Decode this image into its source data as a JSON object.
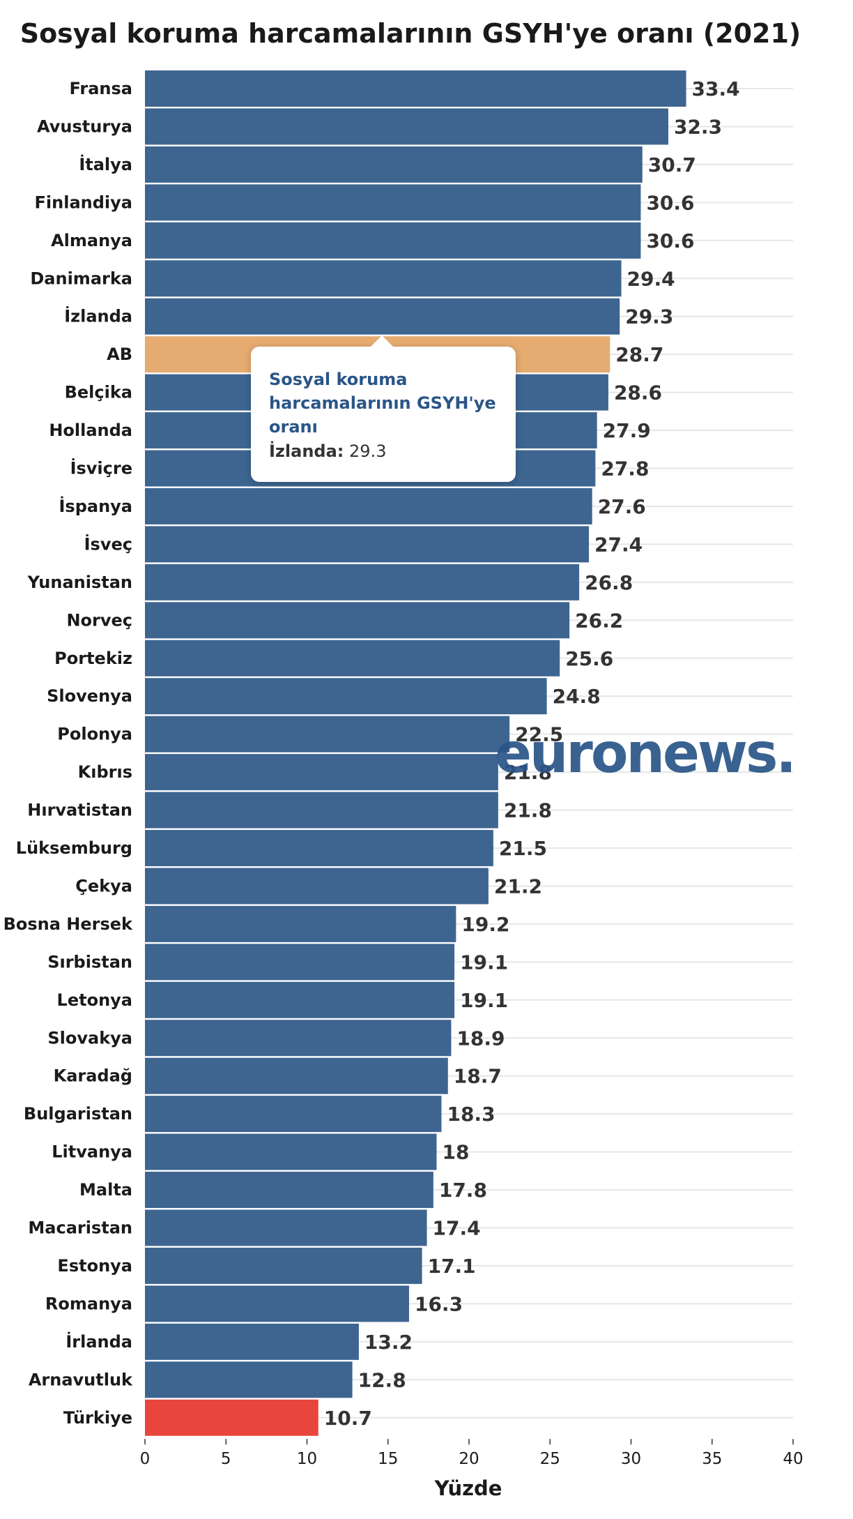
{
  "colors": {
    "bar": "#3d6590",
    "highlight_eu": "#e5ab70",
    "highlight_tr": "#e8453c",
    "grid": "#e6e6e6",
    "watermark": "#2a5587"
  },
  "watermark": "euronews.",
  "tooltip": {
    "title": "Sosyal koruma harcamalarının GSYH'ye oranı",
    "key": "İzlanda:",
    "value": "29.3"
  },
  "chart_data": {
    "type": "bar",
    "orientation": "horizontal",
    "title": "Sosyal koruma harcamalarının GSYH'ye oranı (2021)",
    "xlabel": "Yüzde",
    "ylabel": "",
    "xlim": [
      0,
      40
    ],
    "xticks": [
      0,
      5,
      10,
      15,
      20,
      25,
      30,
      35,
      40
    ],
    "grid": true,
    "categories": [
      "Fransa",
      "Avusturya",
      "İtalya",
      "Finlandiya",
      "Almanya",
      "Danimarka",
      "İzlanda",
      "AB",
      "Belçika",
      "Hollanda",
      "İsviçre",
      "İspanya",
      "İsveç",
      "Yunanistan",
      "Norveç",
      "Portekiz",
      "Slovenya",
      "Polonya",
      "Kıbrıs",
      "Hırvatistan",
      "Lüksemburg",
      "Çekya",
      "Bosna Hersek",
      "Sırbistan",
      "Letonya",
      "Slovakya",
      "Karadağ",
      "Bulgaristan",
      "Litvanya",
      "Malta",
      "Macaristan",
      "Estonya",
      "Romanya",
      "İrlanda",
      "Arnavutluk",
      "Türkiye"
    ],
    "values": [
      33.4,
      32.3,
      30.7,
      30.6,
      30.6,
      29.4,
      29.3,
      28.7,
      28.6,
      27.9,
      27.8,
      27.6,
      27.4,
      26.8,
      26.2,
      25.6,
      24.8,
      22.5,
      21.8,
      21.8,
      21.5,
      21.2,
      19.2,
      19.1,
      19.1,
      18.9,
      18.7,
      18.3,
      18,
      17.8,
      17.4,
      17.1,
      16.3,
      13.2,
      12.8,
      10.7
    ],
    "highlights": {
      "AB": "highlight_eu",
      "Türkiye": "highlight_tr"
    }
  }
}
